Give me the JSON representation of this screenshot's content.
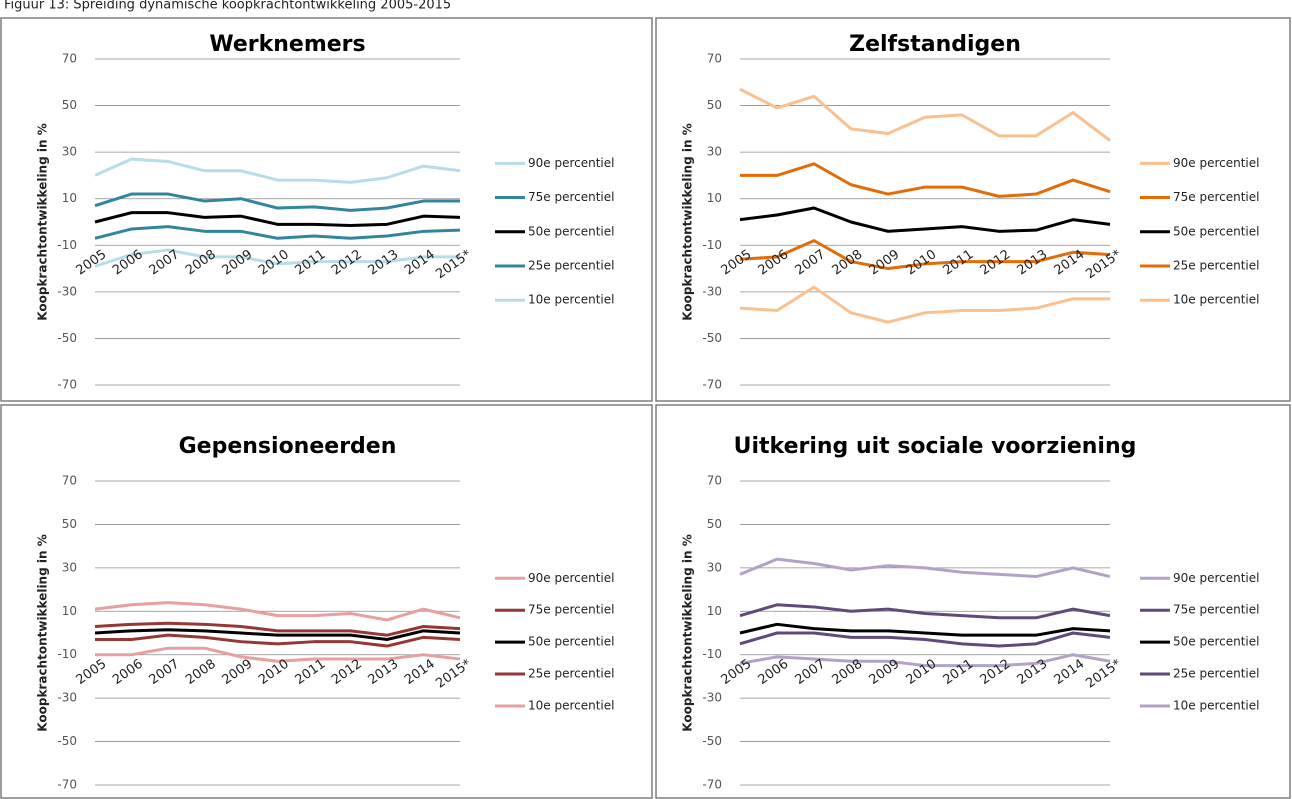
{
  "caption": "Figuur 13: Spreiding dynamische koopkrachtontwikkeling 2005-2015",
  "chart_data": [
    {
      "type": "line",
      "title": "Werknemers",
      "y_label": "Koopkrachtontwikkeling in %",
      "categories": [
        "2005",
        "2006",
        "2007",
        "2008",
        "2009",
        "2010",
        "2011",
        "2012",
        "2013",
        "2014",
        "2015*"
      ],
      "ylim": [
        -70,
        70
      ],
      "yticks": [
        70,
        50,
        30,
        10,
        -10,
        -30,
        -50,
        -70
      ],
      "grid": true,
      "legend": "right",
      "series": [
        {
          "name": "90e percentiel",
          "color": "#b7dde8",
          "values": [
            20,
            27,
            26,
            22,
            22,
            18,
            18,
            17,
            19,
            24,
            22
          ]
        },
        {
          "name": "75e percentiel",
          "color": "#31859c",
          "values": [
            7,
            12,
            12,
            9,
            10,
            6,
            6.5,
            5,
            6,
            9,
            9
          ]
        },
        {
          "name": "50e percentiel",
          "color": "#000000",
          "values": [
            0,
            4,
            4,
            2,
            2.5,
            -1,
            -1,
            -1.5,
            -1,
            2.5,
            2
          ]
        },
        {
          "name": "25e percentiel",
          "color": "#31859c",
          "values": [
            -7,
            -3,
            -2,
            -4,
            -4,
            -7,
            -6,
            -7,
            -6,
            -4,
            -3.5
          ]
        },
        {
          "name": "10e percentiel",
          "color": "#b7dde8",
          "values": [
            -19,
            -14,
            -12,
            -15,
            -15,
            -18,
            -17,
            -17,
            -17,
            -15,
            -15
          ]
        }
      ]
    },
    {
      "type": "line",
      "title": "Zelfstandigen",
      "y_label": "Koopkrachtontwikkeling in %",
      "categories": [
        "2005",
        "2006",
        "2007",
        "2008",
        "2009",
        "2010",
        "2011",
        "2012",
        "2013",
        "2014",
        "2015*"
      ],
      "ylim": [
        -70,
        70
      ],
      "yticks": [
        70,
        50,
        30,
        10,
        -10,
        -30,
        -50,
        -70
      ],
      "grid": true,
      "legend": "right",
      "series": [
        {
          "name": "90e percentiel",
          "color": "#fac090",
          "values": [
            57,
            49,
            54,
            40,
            38,
            45,
            46,
            37,
            37,
            47,
            35
          ]
        },
        {
          "name": "75e percentiel",
          "color": "#e36c09",
          "values": [
            20,
            20,
            25,
            16,
            12,
            15,
            15,
            11,
            12,
            18,
            13
          ]
        },
        {
          "name": "50e percentiel",
          "color": "#000000",
          "values": [
            1,
            3,
            6,
            0,
            -4,
            -3,
            -2,
            -4,
            -3.5,
            1,
            -1
          ]
        },
        {
          "name": "25e percentiel",
          "color": "#e36c09",
          "values": [
            -16,
            -15,
            -8,
            -17,
            -20,
            -18,
            -17,
            -17,
            -17,
            -13,
            -14
          ]
        },
        {
          "name": "10e percentiel",
          "color": "#fac090",
          "values": [
            -37,
            -38,
            -28,
            -39,
            -43,
            -39,
            -38,
            -38,
            -37,
            -33,
            -33
          ]
        }
      ]
    },
    {
      "type": "line",
      "title": "Gepensioneerden",
      "y_label": "Koopkrachtontwikkeling in %",
      "categories": [
        "2005",
        "2006",
        "2007",
        "2008",
        "2009",
        "2010",
        "2011",
        "2012",
        "2013",
        "2014",
        "2015*"
      ],
      "ylim": [
        -70,
        70
      ],
      "yticks": [
        70,
        50,
        30,
        10,
        -10,
        -30,
        -50,
        -70
      ],
      "grid": true,
      "legend": "right",
      "series": [
        {
          "name": "90e percentiel",
          "color": "#e6a0a0",
          "values": [
            11,
            13,
            14,
            13,
            11,
            8,
            8,
            9,
            6,
            11,
            7
          ]
        },
        {
          "name": "75e percentiel",
          "color": "#953735",
          "values": [
            3,
            4,
            4.5,
            4,
            3,
            1,
            1,
            1,
            -1,
            3,
            2
          ]
        },
        {
          "name": "50e percentiel",
          "color": "#000000",
          "values": [
            0,
            1,
            1.5,
            1,
            0,
            -1,
            -1,
            -1,
            -3,
            1,
            0
          ]
        },
        {
          "name": "25e percentiel",
          "color": "#953735",
          "values": [
            -3,
            -3,
            -1,
            -2,
            -4,
            -5,
            -4,
            -4,
            -6,
            -2,
            -3
          ]
        },
        {
          "name": "10e percentiel",
          "color": "#e6a0a0",
          "values": [
            -10,
            -10,
            -7,
            -7,
            -11,
            -13,
            -12,
            -12,
            -12,
            -10,
            -12
          ]
        }
      ]
    },
    {
      "type": "line",
      "title": "Uitkering uit sociale voorziening",
      "y_label": "Koopkrachtontwikkeling in %",
      "categories": [
        "2005",
        "2006",
        "2007",
        "2008",
        "2009",
        "2010",
        "2011",
        "2012",
        "2013",
        "2014",
        "2015*"
      ],
      "ylim": [
        -70,
        70
      ],
      "yticks": [
        70,
        50,
        30,
        10,
        -10,
        -30,
        -50,
        -70
      ],
      "grid": true,
      "legend": "right",
      "series": [
        {
          "name": "90e percentiel",
          "color": "#b3a2c7",
          "values": [
            27,
            34,
            32,
            29,
            31,
            30,
            28,
            27,
            26,
            30,
            26
          ]
        },
        {
          "name": "75e percentiel",
          "color": "#604a7b",
          "values": [
            8,
            13,
            12,
            10,
            11,
            9,
            8,
            7,
            7,
            11,
            8
          ]
        },
        {
          "name": "50e percentiel",
          "color": "#000000",
          "values": [
            0,
            4,
            2,
            1,
            1,
            0,
            -1,
            -1,
            -1,
            2,
            1
          ]
        },
        {
          "name": "25e percentiel",
          "color": "#604a7b",
          "values": [
            -5,
            0,
            0,
            -2,
            -2,
            -3,
            -5,
            -6,
            -5,
            0,
            -2
          ]
        },
        {
          "name": "10e percentiel",
          "color": "#b3a2c7",
          "values": [
            -14,
            -11,
            -12,
            -13,
            -13,
            -15,
            -15,
            -15,
            -14,
            -10,
            -13
          ]
        }
      ]
    }
  ]
}
